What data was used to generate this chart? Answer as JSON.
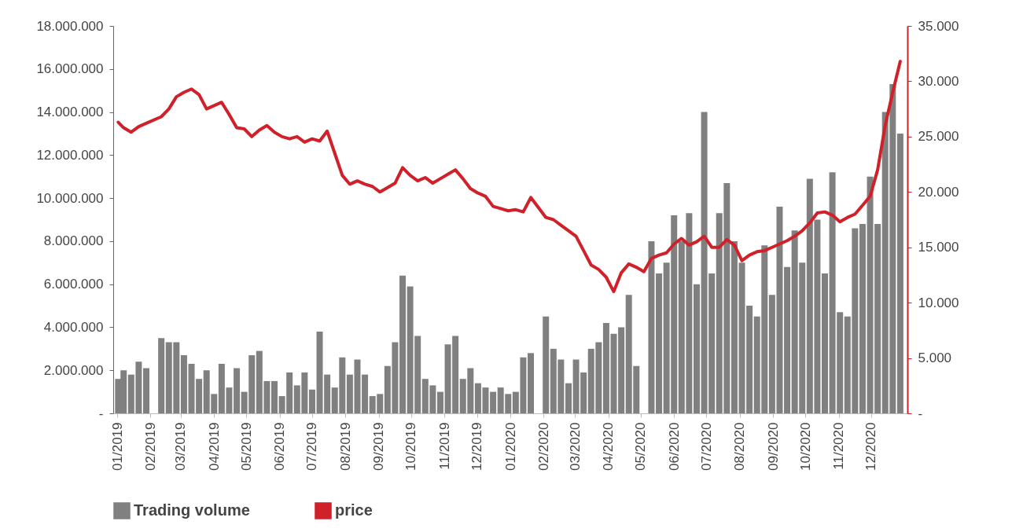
{
  "chart_data": {
    "type": "bar",
    "legend": "bottom",
    "grid": false,
    "x": [
      "2019-01-02",
      "2019-01-07",
      "2019-01-14",
      "2019-01-21",
      "2019-01-28",
      "2019-02-11",
      "2019-02-18",
      "2019-02-25",
      "2019-03-04",
      "2019-03-11",
      "2019-03-18",
      "2019-03-25",
      "2019-04-01",
      "2019-04-08",
      "2019-04-15",
      "2019-04-22",
      "2019-04-29",
      "2019-05-06",
      "2019-05-13",
      "2019-05-20",
      "2019-05-27",
      "2019-06-03",
      "2019-06-10",
      "2019-06-17",
      "2019-06-24",
      "2019-07-01",
      "2019-07-08",
      "2019-07-15",
      "2019-07-22",
      "2019-07-29",
      "2019-08-05",
      "2019-08-12",
      "2019-08-19",
      "2019-08-26",
      "2019-09-02",
      "2019-09-09",
      "2019-09-16",
      "2019-09-23",
      "2019-09-30",
      "2019-10-07",
      "2019-10-14",
      "2019-10-21",
      "2019-10-28",
      "2019-11-04",
      "2019-11-11",
      "2019-11-18",
      "2019-11-25",
      "2019-12-02",
      "2019-12-09",
      "2019-12-16",
      "2019-12-23",
      "2019-12-30",
      "2020-01-06",
      "2020-01-13",
      "2020-01-20",
      "2020-01-27",
      "2020-02-03",
      "2020-02-10",
      "2020-02-17",
      "2020-02-24",
      "2020-03-02",
      "2020-03-09",
      "2020-03-16",
      "2020-03-23",
      "2020-03-30",
      "2020-04-06",
      "2020-04-13",
      "2020-04-20",
      "2020-04-27",
      "2020-05-04",
      "2020-05-11",
      "2020-05-18",
      "2020-05-25",
      "2020-06-01",
      "2020-06-08",
      "2020-06-15",
      "2020-06-22",
      "2020-06-29",
      "2020-07-06",
      "2020-07-13",
      "2020-07-20",
      "2020-07-27",
      "2020-08-03",
      "2020-08-10",
      "2020-08-17",
      "2020-08-24",
      "2020-08-31",
      "2020-09-07",
      "2020-09-14",
      "2020-09-21",
      "2020-09-28",
      "2020-10-05",
      "2020-10-12",
      "2020-10-19",
      "2020-10-26",
      "2020-11-02",
      "2020-11-09",
      "2020-11-16",
      "2020-11-23",
      "2020-11-30",
      "2020-12-07",
      "2020-12-14",
      "2020-12-21",
      "2020-12-28"
    ],
    "xlim": [
      "2019-01-01",
      "2020-12-31"
    ],
    "xticks": [
      {
        "value": "2019-01-01",
        "label": "01/2019"
      },
      {
        "value": "2019-02-01",
        "label": "02/2019"
      },
      {
        "value": "2019-03-01",
        "label": "03/2019"
      },
      {
        "value": "2019-04-01",
        "label": "04/2019"
      },
      {
        "value": "2019-05-01",
        "label": "05/2019"
      },
      {
        "value": "2019-06-01",
        "label": "06/2019"
      },
      {
        "value": "2019-07-01",
        "label": "07/2019"
      },
      {
        "value": "2019-08-01",
        "label": "08/2019"
      },
      {
        "value": "2019-09-01",
        "label": "09/2019"
      },
      {
        "value": "2019-10-01",
        "label": "10/2019"
      },
      {
        "value": "2019-11-01",
        "label": "11/2019"
      },
      {
        "value": "2019-12-01",
        "label": "12/2019"
      },
      {
        "value": "2020-01-01",
        "label": "01/2020"
      },
      {
        "value": "2020-02-01",
        "label": "02/2020"
      },
      {
        "value": "2020-03-01",
        "label": "03/2020"
      },
      {
        "value": "2020-04-01",
        "label": "04/2020"
      },
      {
        "value": "2020-05-01",
        "label": "05/2020"
      },
      {
        "value": "2020-06-01",
        "label": "06/2020"
      },
      {
        "value": "2020-07-01",
        "label": "07/2020"
      },
      {
        "value": "2020-08-01",
        "label": "08/2020"
      },
      {
        "value": "2020-09-01",
        "label": "09/2020"
      },
      {
        "value": "2020-10-01",
        "label": "10/2020"
      },
      {
        "value": "2020-11-01",
        "label": "11/2020"
      },
      {
        "value": "2020-12-01",
        "label": "12/2020"
      }
    ],
    "ylim": [
      0,
      18000000
    ],
    "yticks": [
      {
        "value": 0,
        "label": "-"
      },
      {
        "value": 2000000,
        "label": "2.000.000"
      },
      {
        "value": 4000000,
        "label": "4.000.000"
      },
      {
        "value": 6000000,
        "label": "6.000.000"
      },
      {
        "value": 8000000,
        "label": "8.000.000"
      },
      {
        "value": 10000000,
        "label": "10.000.000"
      },
      {
        "value": 12000000,
        "label": "12.000.000"
      },
      {
        "value": 14000000,
        "label": "14.000.000"
      },
      {
        "value": 16000000,
        "label": "16.000.000"
      },
      {
        "value": 18000000,
        "label": "18.000.000"
      }
    ],
    "y2lim": [
      0,
      35000
    ],
    "y2ticks": [
      {
        "value": 0,
        "label": "-"
      },
      {
        "value": 5000,
        "label": "5.000"
      },
      {
        "value": 10000,
        "label": "10.000"
      },
      {
        "value": 15000,
        "label": "15.000"
      },
      {
        "value": 20000,
        "label": "20.000"
      },
      {
        "value": 25000,
        "label": "25.000"
      },
      {
        "value": 30000,
        "label": "30.000"
      },
      {
        "value": 35000,
        "label": "35.000"
      }
    ],
    "series": [
      {
        "name": "Trading volume",
        "color": "#808080",
        "values": [
          1600000,
          2000000,
          1800000,
          2400000,
          2100000,
          3500000,
          3300000,
          3300000,
          2700000,
          2300000,
          1600000,
          2000000,
          900000,
          2300000,
          1200000,
          2100000,
          1000000,
          2700000,
          2900000,
          1500000,
          1500000,
          800000,
          1900000,
          1300000,
          1900000,
          1100000,
          3800000,
          1800000,
          1200000,
          2600000,
          1800000,
          2500000,
          1800000,
          800000,
          900000,
          2200000,
          3300000,
          6400000,
          5900000,
          3600000,
          1600000,
          1300000,
          1000000,
          3200000,
          3600000,
          1600000,
          2100000,
          1400000,
          1200000,
          1000000,
          1200000,
          900000,
          1000000,
          2600000,
          2800000,
          null,
          4500000,
          3000000,
          2500000,
          1400000,
          2500000,
          1900000,
          3000000,
          3300000,
          4200000,
          3700000,
          4000000,
          5500000,
          2200000,
          null,
          8000000,
          6500000,
          7000000,
          9200000,
          8000000,
          9300000,
          6000000,
          14000000,
          6500000,
          9300000,
          10700000,
          8000000,
          7000000,
          5000000,
          4500000,
          7800000,
          5500000,
          9600000,
          6800000,
          8500000,
          7000000,
          10900000,
          9000000,
          6500000,
          11200000,
          4700000,
          4500000,
          8600000,
          8800000,
          11000000,
          8800000,
          14000000,
          15300000,
          13000000
        ]
      },
      {
        "name": "price",
        "type": "line",
        "axis": "y2",
        "color": "#d0202a",
        "values": [
          26300,
          25800,
          25400,
          25900,
          26200,
          26800,
          27500,
          28600,
          29000,
          29300,
          28800,
          27500,
          27800,
          28100,
          27000,
          25800,
          25700,
          25000,
          25600,
          26000,
          25400,
          25000,
          24800,
          25000,
          24500,
          24800,
          24600,
          25500,
          23500,
          21500,
          20700,
          21000,
          20700,
          20500,
          20000,
          20400,
          20800,
          22200,
          21500,
          21000,
          21300,
          20800,
          21200,
          21600,
          22000,
          21200,
          20300,
          19900,
          19600,
          18700,
          18500,
          18300,
          18400,
          18200,
          19500,
          18600,
          17700,
          17500,
          17000,
          16500,
          16000,
          14700,
          13400,
          13000,
          12300,
          11000,
          12700,
          13500,
          13200,
          12800,
          14000,
          14300,
          14500,
          15300,
          15800,
          15200,
          15500,
          16000,
          15000,
          15000,
          15700,
          15200,
          13800,
          14300,
          14600,
          14700,
          15000,
          15300,
          15600,
          16000,
          16500,
          17200,
          18100,
          18200,
          17900,
          17300,
          17700,
          18000,
          18800,
          19600,
          22000,
          26000,
          29000,
          31800
        ]
      }
    ]
  }
}
